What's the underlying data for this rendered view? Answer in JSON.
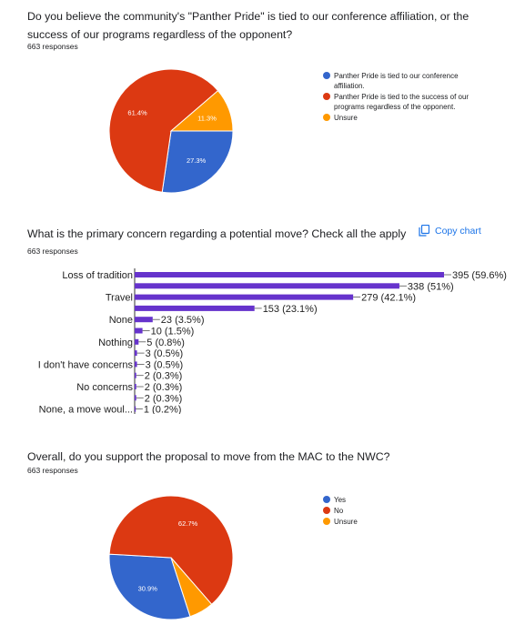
{
  "colors": {
    "blue": "#3366cc",
    "red": "#dc3912",
    "orange": "#ff9900",
    "bar": "#6633cc",
    "link": "#1a73e8"
  },
  "q1": {
    "question": "Do you believe the community's \"Panther Pride\" is tied to our conference affiliation, or the success of our programs regardless of the opponent?",
    "responses": "663 responses"
  },
  "q2": {
    "question": "What is the primary concern regarding a potential move? Check all the apply",
    "responses": "663 responses",
    "copy_label": "Copy chart",
    "copy_icon": "copy-icon"
  },
  "q3": {
    "question": "Overall, do you support the proposal to move from the MAC to the NWC?",
    "responses": "663 responses"
  },
  "chart_data": [
    {
      "type": "pie",
      "labels": [
        "Panther Pride is tied to our conference affiliation.",
        "Panther Pride is tied to the success of our programs regardless of the opponent.",
        "Unsure"
      ],
      "values": [
        27.3,
        61.4,
        11.3
      ],
      "data_labels": [
        "27.3%",
        "61.4%",
        "11.3%"
      ],
      "colors": [
        "#3366cc",
        "#dc3912",
        "#ff9900"
      ],
      "legend_position": "right"
    },
    {
      "type": "bar",
      "orientation": "horizontal",
      "categories": [
        "Loss of tradition",
        "",
        "Travel",
        "",
        "None",
        "",
        "Nothing",
        "",
        "I don't have concerns",
        "",
        "No concerns",
        "",
        "None, a move woul..."
      ],
      "values": [
        395,
        338,
        279,
        153,
        23,
        10,
        5,
        3,
        3,
        2,
        2,
        2,
        1
      ],
      "data_labels": [
        "395 (59.6%)",
        "338 (51%)",
        "279 (42.1%)",
        "153 (23.1%)",
        "23 (3.5%)",
        "10 (1.5%)",
        "5 (0.8%)",
        "3 (0.5%)",
        "3 (0.5%)",
        "2 (0.3%)",
        "2 (0.3%)",
        "2 (0.3%)",
        "1 (0.2%)"
      ],
      "xlim": [
        0,
        400
      ]
    },
    {
      "type": "pie",
      "labels": [
        "Yes",
        "No",
        "Unsure"
      ],
      "values": [
        30.9,
        62.7,
        6.4
      ],
      "data_labels": [
        "30.9%",
        "62.7%",
        ""
      ],
      "colors": [
        "#3366cc",
        "#dc3912",
        "#ff9900"
      ],
      "legend_position": "right"
    }
  ]
}
